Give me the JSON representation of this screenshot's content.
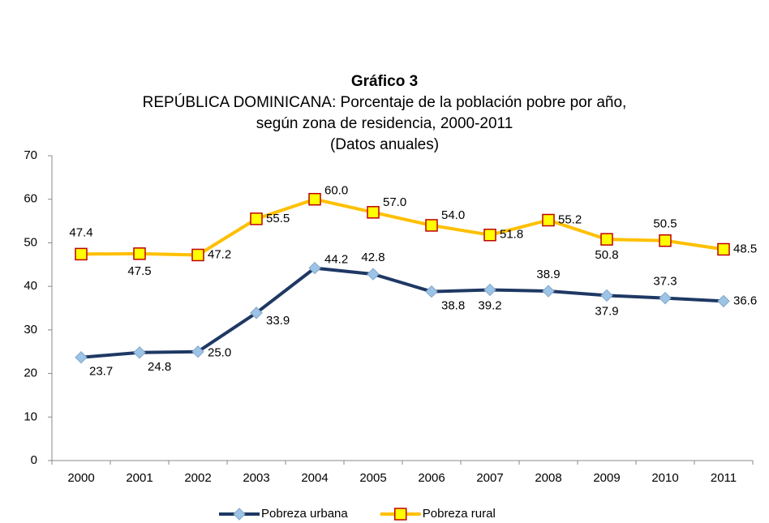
{
  "chart_data": {
    "type": "line",
    "title": "Gráfico 3",
    "subtitle": [
      "REPÚBLICA DOMINICANA: Porcentaje de la población pobre por año,",
      "según zona de residencia, 2000-2011",
      "(Datos anuales)"
    ],
    "categories": [
      "2000",
      "2001",
      "2002",
      "2003",
      "2004",
      "2005",
      "2006",
      "2007",
      "2008",
      "2009",
      "2010",
      "2011"
    ],
    "ylim": [
      0,
      70
    ],
    "yticks": [
      0,
      10,
      20,
      30,
      40,
      50,
      60,
      70
    ],
    "legend": "bottom",
    "series": [
      {
        "name": "Pobreza urbana",
        "color": "#1f3864",
        "marker": "diamond",
        "marker_color": "#9dc3e6",
        "values": [
          23.7,
          24.8,
          25.0,
          33.9,
          44.2,
          42.8,
          38.8,
          39.2,
          38.9,
          37.9,
          37.3,
          36.6
        ],
        "value_labels": [
          "23.7",
          "24.8",
          "25.0",
          "33.9",
          "44.2",
          "42.8",
          "38.8",
          "39.2",
          "38.9",
          "37.9",
          "37.3",
          "36.6"
        ]
      },
      {
        "name": "Pobreza rural",
        "color": "#ffc000",
        "marker": "square",
        "marker_color": "#ffff00",
        "marker_edge": "#c00000",
        "values": [
          47.4,
          47.5,
          47.2,
          55.5,
          60.0,
          57.0,
          54.0,
          51.8,
          55.2,
          50.8,
          50.5,
          48.5
        ],
        "value_labels": [
          "47.4",
          "47.5",
          "47.2",
          "55.5",
          "60.0",
          "57.0",
          "54.0",
          "51.8",
          "55.2",
          "50.8",
          "50.5",
          "48.5"
        ]
      }
    ]
  }
}
